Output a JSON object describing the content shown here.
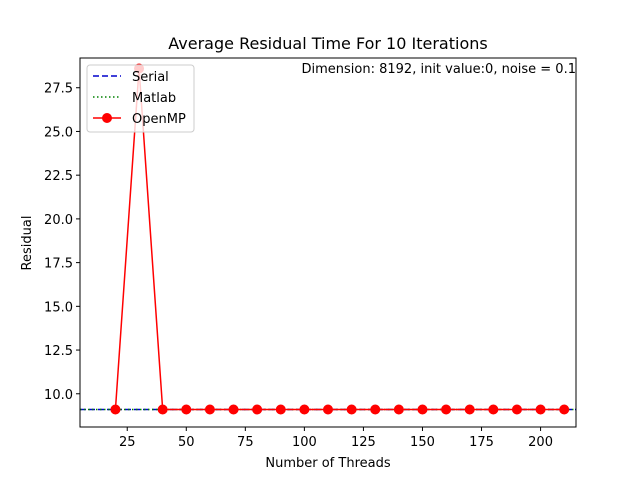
{
  "chart_data": {
    "type": "line",
    "title": "Average Residual Time For 10 Iterations",
    "xlabel": "Number of Threads",
    "ylabel": "Residual",
    "annotation": "Dimension: 8192, init value:0, noise = 0.1",
    "xlim": [
      5,
      215
    ],
    "ylim": [
      8.1,
      29.2
    ],
    "xticks": [
      25,
      50,
      75,
      100,
      125,
      150,
      175,
      200
    ],
    "yticks": [
      10.0,
      12.5,
      15.0,
      17.5,
      20.0,
      22.5,
      25.0,
      27.5
    ],
    "xtick_labels": [
      "25",
      "50",
      "75",
      "100",
      "125",
      "150",
      "175",
      "200"
    ],
    "ytick_labels": [
      "10.0",
      "12.5",
      "15.0",
      "17.5",
      "20.0",
      "22.5",
      "25.0",
      "27.5"
    ],
    "grid": false,
    "legend_position": "top-left",
    "series": [
      {
        "name": "Serial",
        "style": "dashed",
        "color": "#0000cc",
        "kind": "hline",
        "y": 9.1
      },
      {
        "name": "Matlab",
        "style": "dotted",
        "color": "#008000",
        "kind": "hline",
        "y": 9.1
      },
      {
        "name": "OpenMP",
        "style": "solid-marker",
        "color": "#ff0000",
        "kind": "line",
        "x": [
          20,
          30,
          40,
          50,
          60,
          70,
          80,
          90,
          100,
          110,
          120,
          130,
          140,
          150,
          160,
          170,
          180,
          190,
          200,
          210
        ],
        "y": [
          9.1,
          28.6,
          9.1,
          9.1,
          9.1,
          9.1,
          9.1,
          9.1,
          9.1,
          9.1,
          9.1,
          9.1,
          9.1,
          9.1,
          9.1,
          9.1,
          9.1,
          9.1,
          9.1,
          9.1
        ]
      }
    ]
  }
}
